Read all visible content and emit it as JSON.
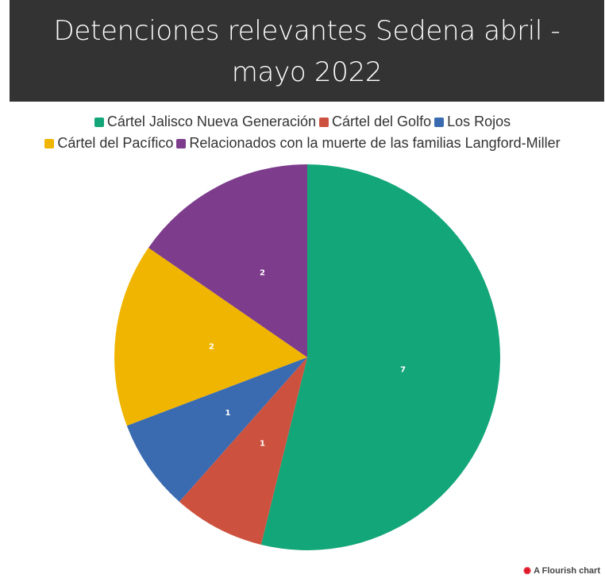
{
  "chart_data": {
    "type": "pie",
    "title": "Detenciones relevantes Sedena abril - mayo 2022",
    "categories": [
      "Cártel Jalisco Nueva Generación",
      "Cártel del Golfo",
      "Los Rojos",
      "Cártel del Pacífico",
      "Relacionados con la muerte de las familias Langford-Miller"
    ],
    "values": [
      7,
      1,
      1,
      2,
      2
    ],
    "colors": [
      "#13a679",
      "#cc523f",
      "#3a6bb0",
      "#f0b500",
      "#7d3c8c"
    ],
    "legend_position": "top"
  },
  "credit": {
    "label": "A Flourish chart",
    "icon": "flourish-logo-icon"
  }
}
